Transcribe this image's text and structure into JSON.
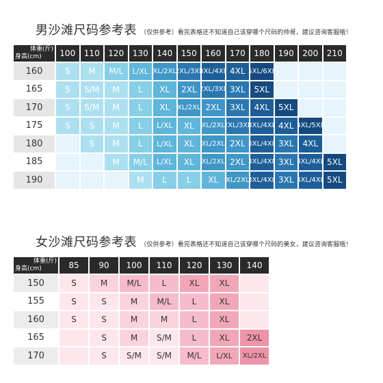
{
  "men": {
    "title": "男沙滩尺码参考表",
    "subtitle": "（仅供参考）看完表格还不知道自己该穿哪个尺码的帅哥，建议咨询客服哦！",
    "corner_weight": "体重(斤)",
    "corner_height": "身高(cm)",
    "weights": [
      "100",
      "110",
      "120",
      "130",
      "140",
      "150",
      "160",
      "170",
      "180",
      "190",
      "200",
      "210"
    ],
    "heights": [
      "160",
      "165",
      "170",
      "175",
      "180",
      "185",
      "190"
    ],
    "rows": [
      [
        "S",
        "M",
        "M/L",
        "L/XL",
        "XL/2XL",
        "2XL/3XL",
        "3XL/4XL",
        "4XL",
        "5XL/6XL",
        "",
        "",
        ""
      ],
      [
        "S",
        "S/M",
        "M",
        "L",
        "XL",
        "2XL",
        "2XL/3XL",
        "3XL",
        "5XL",
        "",
        "",
        ""
      ],
      [
        "S",
        "S/M",
        "M",
        "L",
        "XL",
        "XL/2XL",
        "2XL",
        "3XL",
        "4XL",
        "5XL",
        "",
        ""
      ],
      [
        "S",
        "S",
        "M",
        "L",
        "L/XL",
        "XL",
        "XL/2XL",
        "2XL/3XL",
        "3XL/4XL",
        "4XL",
        "4XL/5XL",
        ""
      ],
      [
        "",
        "S",
        "M",
        "L",
        "L/XL",
        "XL",
        "XL/2XL",
        "2XL",
        "3XL/4XL",
        "3XL",
        "4XL",
        ""
      ],
      [
        "",
        "",
        "M",
        "M/L",
        "L/XL",
        "XL",
        "XL/2XL",
        "2XL",
        "3XL/4XL",
        "3XL",
        "3XL/4XL",
        "5XL"
      ],
      [
        "",
        "",
        "",
        "M",
        "L",
        "L",
        "XL",
        "XL/2XL",
        "3XL/4XL",
        "3XL",
        "3XL/4XL",
        "5XL"
      ]
    ]
  },
  "women": {
    "title": "女沙滩尺码参考表",
    "subtitle": "（仅供参考）看完表格还不知道自己该穿哪个尺码的美女，建议咨询客服哦！",
    "corner_weight": "体重(斤)",
    "corner_height": "身高(cm)",
    "weights": [
      "85",
      "90",
      "100",
      "110",
      "120",
      "130",
      "140"
    ],
    "heights": [
      "150",
      "155",
      "160",
      "165",
      "170"
    ],
    "rows": [
      [
        "S",
        "M",
        "M/L",
        "L",
        "XL",
        "XL",
        ""
      ],
      [
        "S",
        "S",
        "M",
        "M/L",
        "L",
        "XL",
        ""
      ],
      [
        "S",
        "S",
        "M",
        "M",
        "L",
        "XL",
        ""
      ],
      [
        "",
        "S",
        "M",
        "S/M",
        "L",
        "XL",
        "2XL"
      ],
      [
        "",
        "S",
        "S/M",
        "S/M",
        "M/L",
        "L/XL",
        "XL/2XL"
      ]
    ]
  },
  "colors": {
    "header_bg": "#2a2a2a",
    "men_blue_palette": [
      "#e6f4fb",
      "#ccecf7",
      "#ace0f1",
      "#86cfe7",
      "#5fb6da",
      "#3f96c7",
      "#2a77b0",
      "#1d5e98",
      "#154a80"
    ],
    "women_pink_palette": [
      "#fde7ec",
      "#fbd3dd",
      "#f7bccb",
      "#f2a7b9",
      "#ee93a8"
    ]
  }
}
